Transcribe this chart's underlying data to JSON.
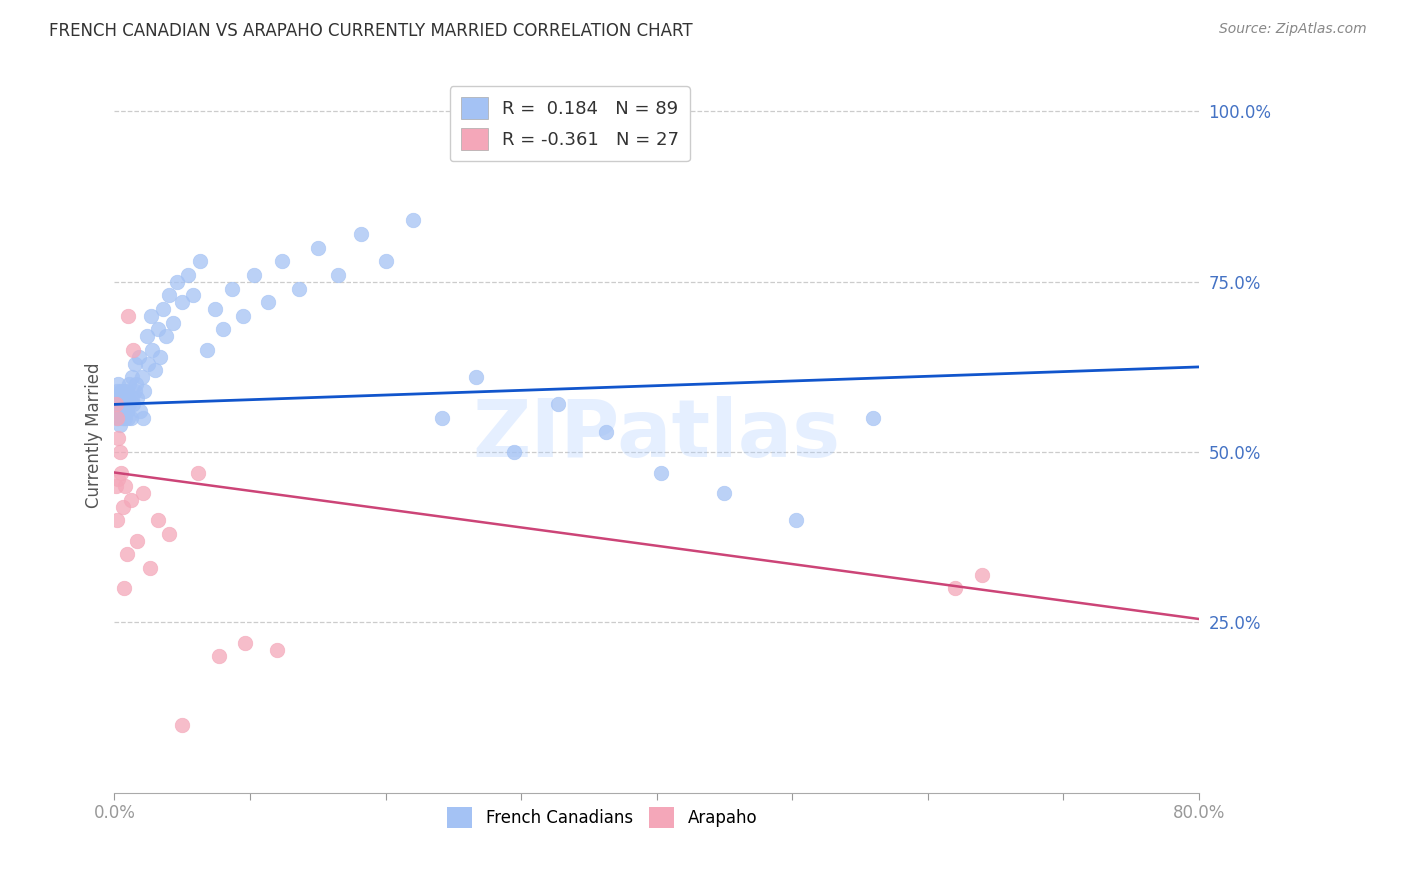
{
  "title": "FRENCH CANADIAN VS ARAPAHO CURRENTLY MARRIED CORRELATION CHART",
  "source": "Source: ZipAtlas.com",
  "ylabel": "Currently Married",
  "x_min": 0.0,
  "x_max": 0.8,
  "y_min": 0.0,
  "y_max": 1.05,
  "yticks": [
    0.25,
    0.5,
    0.75,
    1.0
  ],
  "ytick_labels": [
    "25.0%",
    "50.0%",
    "75.0%",
    "100.0%"
  ],
  "xticks": [
    0.0,
    0.1,
    0.2,
    0.3,
    0.4,
    0.5,
    0.6,
    0.7,
    0.8
  ],
  "xtick_labels": [
    "0.0%",
    "",
    "",
    "",
    "",
    "",
    "",
    "",
    "80.0%"
  ],
  "watermark": "ZIPatlas",
  "blue_color": "#a4c2f4",
  "pink_color": "#f4a7b9",
  "blue_line_color": "#1155cc",
  "pink_line_color": "#cc4477",
  "legend_r_blue": "0.184",
  "legend_n_blue": "89",
  "legend_r_pink": "-0.361",
  "legend_n_pink": "27",
  "blue_x": [
    0.001,
    0.001,
    0.001,
    0.002,
    0.002,
    0.002,
    0.002,
    0.002,
    0.003,
    0.003,
    0.003,
    0.003,
    0.003,
    0.004,
    0.004,
    0.004,
    0.004,
    0.005,
    0.005,
    0.005,
    0.005,
    0.006,
    0.006,
    0.006,
    0.007,
    0.007,
    0.007,
    0.008,
    0.008,
    0.008,
    0.009,
    0.009,
    0.01,
    0.01,
    0.01,
    0.011,
    0.011,
    0.012,
    0.013,
    0.013,
    0.014,
    0.015,
    0.015,
    0.016,
    0.017,
    0.018,
    0.019,
    0.02,
    0.021,
    0.022,
    0.024,
    0.025,
    0.027,
    0.028,
    0.03,
    0.032,
    0.034,
    0.036,
    0.038,
    0.04,
    0.043,
    0.046,
    0.05,
    0.054,
    0.058,
    0.063,
    0.068,
    0.074,
    0.08,
    0.087,
    0.095,
    0.103,
    0.113,
    0.124,
    0.136,
    0.15,
    0.165,
    0.182,
    0.2,
    0.22,
    0.242,
    0.267,
    0.295,
    0.327,
    0.363,
    0.403,
    0.45,
    0.503,
    0.56
  ],
  "blue_y": [
    0.57,
    0.58,
    0.56,
    0.57,
    0.55,
    0.59,
    0.56,
    0.58,
    0.57,
    0.56,
    0.58,
    0.55,
    0.6,
    0.57,
    0.56,
    0.58,
    0.54,
    0.57,
    0.58,
    0.56,
    0.59,
    0.57,
    0.55,
    0.58,
    0.57,
    0.56,
    0.59,
    0.57,
    0.55,
    0.58,
    0.56,
    0.59,
    0.57,
    0.55,
    0.58,
    0.57,
    0.6,
    0.55,
    0.58,
    0.61,
    0.57,
    0.59,
    0.63,
    0.6,
    0.58,
    0.64,
    0.56,
    0.61,
    0.55,
    0.59,
    0.67,
    0.63,
    0.7,
    0.65,
    0.62,
    0.68,
    0.64,
    0.71,
    0.67,
    0.73,
    0.69,
    0.75,
    0.72,
    0.76,
    0.73,
    0.78,
    0.65,
    0.71,
    0.68,
    0.74,
    0.7,
    0.76,
    0.72,
    0.78,
    0.74,
    0.8,
    0.76,
    0.82,
    0.78,
    0.84,
    0.55,
    0.61,
    0.5,
    0.57,
    0.53,
    0.47,
    0.44,
    0.4,
    0.55
  ],
  "pink_x": [
    0.001,
    0.001,
    0.002,
    0.002,
    0.003,
    0.003,
    0.004,
    0.005,
    0.006,
    0.007,
    0.008,
    0.009,
    0.01,
    0.012,
    0.014,
    0.017,
    0.021,
    0.026,
    0.032,
    0.04,
    0.05,
    0.062,
    0.077,
    0.096,
    0.12,
    0.62,
    0.64
  ],
  "pink_y": [
    0.57,
    0.45,
    0.4,
    0.55,
    0.46,
    0.52,
    0.5,
    0.47,
    0.42,
    0.3,
    0.45,
    0.35,
    0.7,
    0.43,
    0.65,
    0.37,
    0.44,
    0.33,
    0.4,
    0.38,
    0.1,
    0.47,
    0.2,
    0.22,
    0.21,
    0.3,
    0.32
  ],
  "bg_color": "#ffffff",
  "grid_color": "#cccccc",
  "axis_color": "#aaaaaa",
  "tick_color": "#999999",
  "title_color": "#333333",
  "source_color": "#888888",
  "ylabel_color": "#555555",
  "ytick_color": "#4472c4",
  "xtick_color": "#555555"
}
